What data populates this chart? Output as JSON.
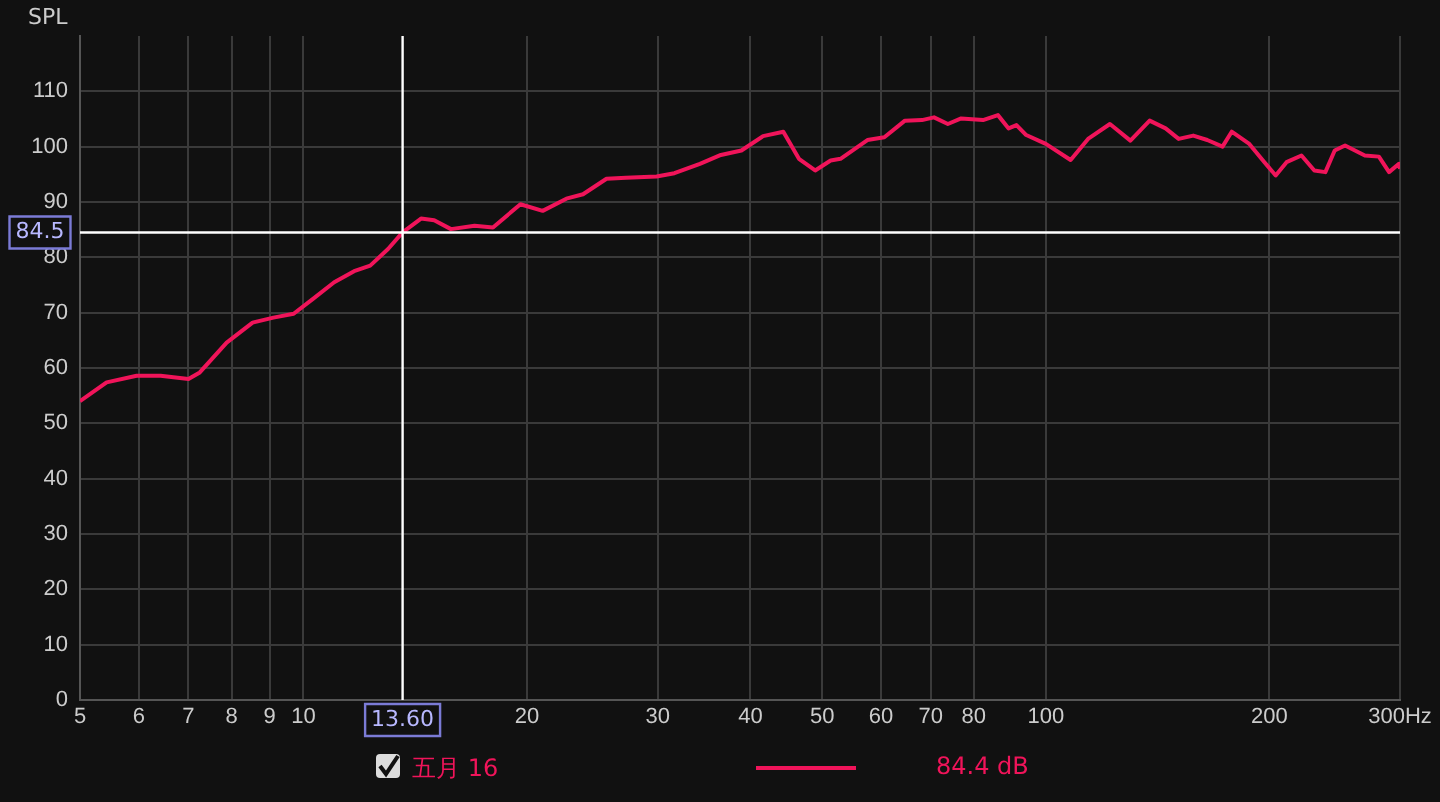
{
  "chart_data": {
    "type": "line",
    "ylabel": "SPL",
    "log": "x",
    "grid": true,
    "legend": "bottom",
    "marker": "none",
    "line_style": "solid",
    "xlim": [
      5,
      300
    ],
    "ylim": [
      0,
      120
    ],
    "xticks": [
      5,
      6,
      7,
      8,
      9,
      10,
      20,
      30,
      40,
      50,
      60,
      70,
      80,
      100,
      200,
      {
        "value": 300,
        "label": "300Hz"
      }
    ],
    "yticks": [
      0,
      10,
      20,
      30,
      40,
      50,
      60,
      70,
      80,
      90,
      100,
      110
    ],
    "ref_lines": [
      {
        "axis": "x",
        "value": 13.6,
        "label": "13.60",
        "color": "#ffffff"
      },
      {
        "axis": "y",
        "value": 84.5,
        "label": "84.5",
        "color": "#ffffff"
      }
    ],
    "annotations": [
      "84.4 dB"
    ],
    "series": [
      {
        "name": "五月 16",
        "color": "#f0145a",
        "x": [
          5,
          5.43,
          5.96,
          6.42,
          7.0,
          7.25,
          7.88,
          8.54,
          9.11,
          9.7,
          10.3,
          11.0,
          11.7,
          12.3,
          13.0,
          13.6,
          14.4,
          15.0,
          15.8,
          17.0,
          18.0,
          19.6,
          21.0,
          22.6,
          23.8,
          25.6,
          27.2,
          29.9,
          31.6,
          34.2,
          36.5,
          38.9,
          41.6,
          44.3,
          46.5,
          48.9,
          51.3,
          52.9,
          57.5,
          60.6,
          64.6,
          68.1,
          70.7,
          73.8,
          76.9,
          82.3,
          86.2,
          89.1,
          91.3,
          94.1,
          100,
          108,
          114,
          122,
          130,
          138,
          145,
          151,
          158,
          165,
          173,
          178,
          188,
          197,
          204,
          211,
          221,
          230,
          238,
          245,
          253,
          269,
          281,
          290,
          299,
          300
        ],
        "values": [
          54.0,
          57.4,
          58.6,
          58.6,
          58.0,
          59.2,
          64.6,
          68.2,
          69.1,
          69.8,
          72.5,
          75.5,
          77.5,
          78.5,
          81.5,
          84.5,
          87.0,
          86.7,
          85.1,
          85.7,
          85.4,
          89.6,
          88.4,
          90.6,
          91.4,
          94.2,
          94.4,
          94.6,
          95.2,
          96.9,
          98.5,
          99.3,
          101.9,
          102.7,
          97.8,
          95.7,
          97.5,
          97.8,
          101.2,
          101.7,
          104.7,
          104.8,
          105.3,
          104.1,
          105.1,
          104.8,
          105.7,
          103.3,
          103.9,
          102.1,
          100.5,
          97.6,
          101.4,
          104.1,
          101.1,
          104.7,
          103.3,
          101.4,
          102.0,
          101.2,
          100.0,
          102.7,
          100.5,
          97.2,
          94.8,
          97.2,
          98.4,
          95.7,
          95.4,
          99.3,
          100.2,
          98.4,
          98.2,
          95.4,
          96.9,
          96.0
        ]
      }
    ]
  }
}
